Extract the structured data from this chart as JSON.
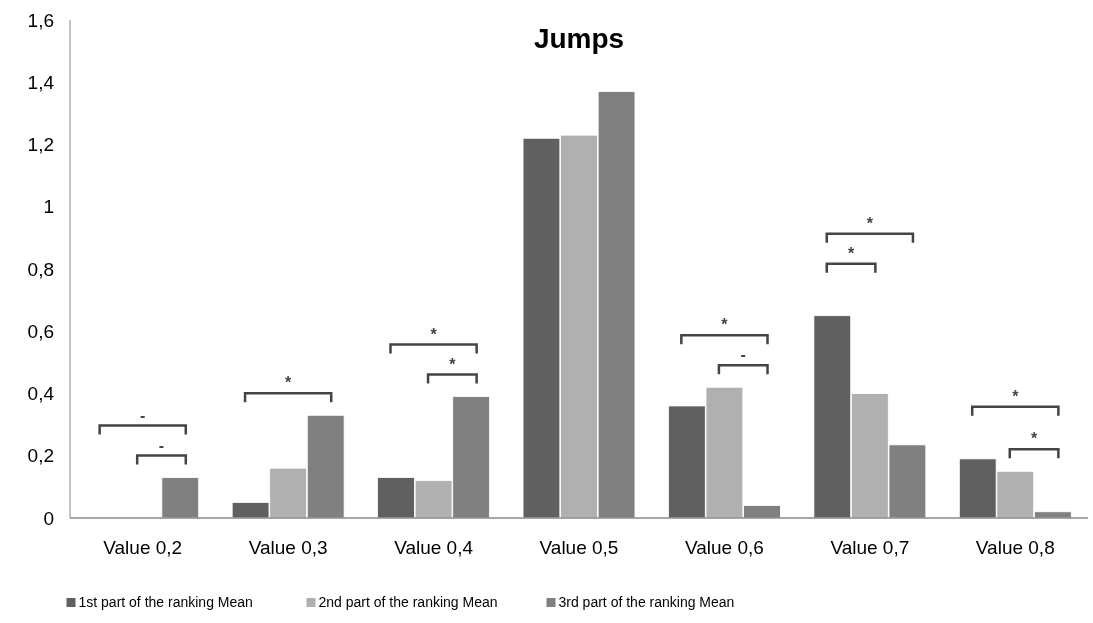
{
  "chart_data": {
    "type": "bar",
    "title": "Jumps",
    "categories": [
      "Value 0,2",
      "Value 0,3",
      "Value 0,4",
      "Value 0,5",
      "Value 0,6",
      "Value 0,7",
      "Value 0,8"
    ],
    "series": [
      {
        "name": "1st part of the ranking  Mean",
        "color": "#606060",
        "values": [
          0,
          0.05,
          0.13,
          1.22,
          0.36,
          0.65,
          0.19
        ]
      },
      {
        "name": "2nd part of the ranking Mean",
        "color": "#b0b0b0",
        "values": [
          0,
          0.16,
          0.12,
          1.23,
          0.42,
          0.4,
          0.15
        ]
      },
      {
        "name": "3rd part of the ranking Mean",
        "color": "#808080",
        "values": [
          0.13,
          0.33,
          0.39,
          1.37,
          0.04,
          0.235,
          0.02
        ]
      }
    ],
    "ylim": [
      0,
      1.6
    ],
    "yticks": [
      0,
      {
        "value": 0.2,
        "label": "0,2"
      },
      {
        "value": 0.4,
        "label": "0,4"
      },
      {
        "value": 0.6,
        "label": "0,6"
      },
      {
        "value": 0.8,
        "label": "0,8"
      },
      1,
      {
        "value": 1.2,
        "label": "1,2"
      },
      {
        "value": 1.4,
        "label": "1,4"
      },
      {
        "value": 1.6,
        "label": "1,6"
      }
    ],
    "grid": false,
    "legend": "bottom",
    "annotations": [
      "-",
      "-",
      "*",
      "*",
      "*",
      "*",
      "-",
      "*",
      "*",
      "*",
      "*"
    ]
  }
}
